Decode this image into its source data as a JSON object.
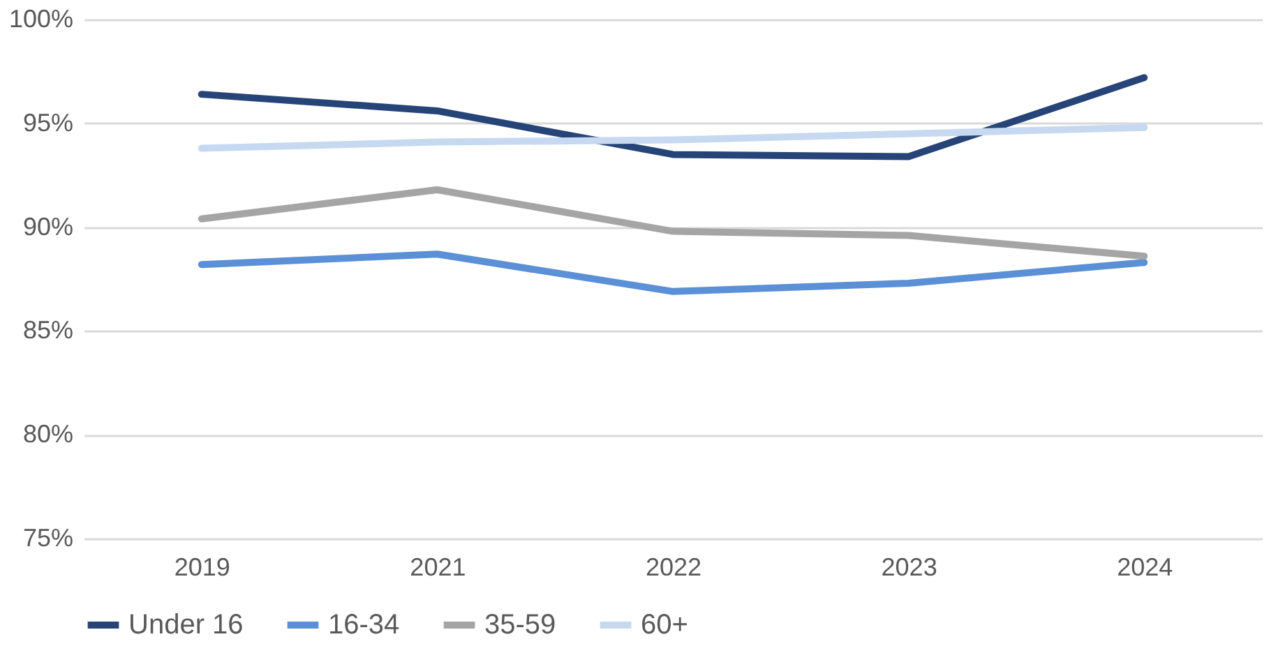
{
  "chart_data": {
    "type": "line",
    "categories": [
      "2019",
      "2021",
      "2022",
      "2023",
      "2024"
    ],
    "series": [
      {
        "name": "Under 16",
        "color": "#264478",
        "values": [
          96.4,
          95.6,
          93.5,
          93.4,
          97.2
        ]
      },
      {
        "name": "16-34",
        "color": "#5b8fd6",
        "values": [
          88.2,
          88.7,
          86.9,
          87.3,
          88.3
        ]
      },
      {
        "name": "35-59",
        "color": "#a5a5a5",
        "values": [
          90.4,
          91.8,
          89.8,
          89.6,
          88.6
        ]
      },
      {
        "name": "60+",
        "color": "#c6d9f1",
        "values": [
          93.8,
          94.1,
          94.2,
          94.5,
          94.8
        ]
      }
    ],
    "ylim": [
      75,
      100
    ],
    "yticks": [
      {
        "value": 75,
        "label": "75%"
      },
      {
        "value": 80,
        "label": "80%"
      },
      {
        "value": 85,
        "label": "85%"
      },
      {
        "value": 90,
        "label": "90%"
      },
      {
        "value": 95,
        "label": "95%"
      },
      {
        "value": 100,
        "label": "100%"
      }
    ],
    "grid": "y",
    "legend": "bottom",
    "marker": "none",
    "line_style": "solid"
  }
}
